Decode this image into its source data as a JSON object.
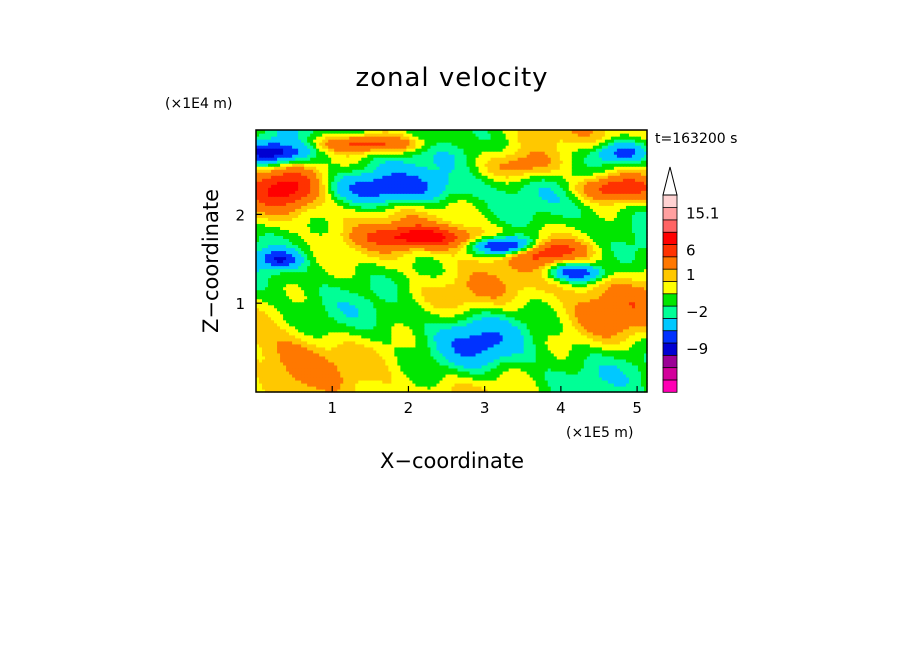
{
  "chart_data": {
    "type": "heatmap",
    "title": "zonal velocity",
    "xlabel": "X−coordinate",
    "ylabel": "Z−coordinate",
    "x_unit": "(×1E5 m)",
    "y_unit": "(×1E4 m)",
    "time_label": "t=163200 s",
    "xlim": [
      0,
      5.13
    ],
    "ylim": [
      0,
      2.95
    ],
    "x_ticks": [
      {
        "value": 1,
        "label": "1"
      },
      {
        "value": 2,
        "label": "2"
      },
      {
        "value": 3,
        "label": "3"
      },
      {
        "value": 4,
        "label": "4"
      },
      {
        "value": 5,
        "label": "5"
      }
    ],
    "y_ticks": [
      {
        "value": 1,
        "label": "1"
      },
      {
        "value": 2,
        "label": "2"
      }
    ],
    "colorbar": {
      "colors": [
        "#ff00b4",
        "#d2009b",
        "#9b0096",
        "#0000d2",
        "#0032ff",
        "#00c8ff",
        "#00ff96",
        "#00e600",
        "#ffff00",
        "#ffc800",
        "#ff7800",
        "#ff3200",
        "#ff0000",
        "#ff6464",
        "#ffa0a0",
        "#ffd2d2"
      ],
      "labels": [
        {
          "index": 3,
          "label": "−9"
        },
        {
          "index": 6,
          "label": "−2"
        },
        {
          "index": 9,
          "label": "1"
        },
        {
          "index": 11,
          "label": "6"
        },
        {
          "index": 14,
          "label": "15.1"
        }
      ]
    },
    "field_features": [
      {
        "x": 0.2,
        "z": 2.7,
        "sx": 0.45,
        "sz": 0.12,
        "u": -7
      },
      {
        "x": 1.7,
        "z": 2.3,
        "sx": 0.9,
        "sz": 0.18,
        "u": -5
      },
      {
        "x": 3.3,
        "z": 1.65,
        "sx": 0.4,
        "sz": 0.1,
        "u": -9
      },
      {
        "x": 4.2,
        "z": 1.35,
        "sx": 0.35,
        "sz": 0.1,
        "u": -6
      },
      {
        "x": 4.8,
        "z": 2.7,
        "sx": 0.35,
        "sz": 0.12,
        "u": -5
      },
      {
        "x": 2.9,
        "z": 0.55,
        "sx": 0.5,
        "sz": 0.25,
        "u": -3
      },
      {
        "x": 0.3,
        "z": 1.5,
        "sx": 0.25,
        "sz": 0.1,
        "u": -5
      },
      {
        "x": 1.5,
        "z": 2.8,
        "sx": 0.7,
        "sz": 0.1,
        "u": 5
      },
      {
        "x": 0.4,
        "z": 2.3,
        "sx": 0.45,
        "sz": 0.2,
        "u": 6
      },
      {
        "x": 2.2,
        "z": 1.75,
        "sx": 0.7,
        "sz": 0.12,
        "u": 6
      },
      {
        "x": 4.7,
        "z": 2.3,
        "sx": 0.5,
        "sz": 0.15,
        "u": 6
      },
      {
        "x": 3.8,
        "z": 1.6,
        "sx": 0.5,
        "sz": 0.12,
        "u": 5
      },
      {
        "x": 3.5,
        "z": 2.55,
        "sx": 0.5,
        "sz": 0.15,
        "u": 3
      },
      {
        "x": 4.7,
        "z": 0.9,
        "sx": 0.6,
        "sz": 0.35,
        "u": 2
      },
      {
        "x": 0.5,
        "z": 0.4,
        "sx": 0.5,
        "sz": 0.3,
        "u": 2
      },
      {
        "x": 2.5,
        "z": 1.1,
        "sx": 1.0,
        "sz": 0.2,
        "u": 1.5
      }
    ]
  }
}
